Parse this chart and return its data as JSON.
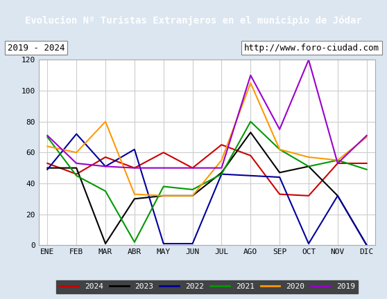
{
  "title": "Evolucion Nº Turistas Extranjeros en el municipio de Jódar",
  "subtitle_left": "2019 - 2024",
  "subtitle_right": "http://www.foro-ciudad.com",
  "months": [
    "ENE",
    "FEB",
    "MAR",
    "ABR",
    "MAY",
    "JUN",
    "JUL",
    "AGO",
    "SEP",
    "OCT",
    "NOV",
    "DIC"
  ],
  "series": {
    "2024": {
      "color": "#cc0000",
      "values": [
        53,
        46,
        57,
        50,
        60,
        50,
        65,
        58,
        33,
        32,
        53,
        53
      ]
    },
    "2023": {
      "color": "#000000",
      "values": [
        50,
        50,
        1,
        30,
        32,
        32,
        47,
        73,
        47,
        51,
        32,
        0
      ]
    },
    "2022": {
      "color": "#000099",
      "values": [
        49,
        72,
        51,
        62,
        1,
        1,
        46,
        45,
        44,
        1,
        32,
        0
      ]
    },
    "2021": {
      "color": "#009900",
      "values": [
        70,
        45,
        35,
        2,
        38,
        36,
        46,
        80,
        62,
        51,
        55,
        49
      ]
    },
    "2020": {
      "color": "#ff9900",
      "values": [
        64,
        60,
        80,
        33,
        32,
        32,
        55,
        105,
        62,
        57,
        55,
        70
      ]
    },
    "2019": {
      "color": "#9900cc",
      "values": [
        71,
        53,
        51,
        50,
        50,
        50,
        50,
        110,
        75,
        120,
        53,
        71
      ]
    }
  },
  "ylim": [
    0,
    120
  ],
  "yticks": [
    0,
    20,
    40,
    60,
    80,
    100,
    120
  ],
  "title_bg_color": "#6699cc",
  "title_text_color": "#ffffff",
  "subtitle_bg_color": "#ffffff",
  "plot_bg_color": "#ffffff",
  "grid_color": "#cccccc",
  "legend_order": [
    "2024",
    "2023",
    "2022",
    "2021",
    "2020",
    "2019"
  ],
  "outer_bg_color": "#dce6f1"
}
